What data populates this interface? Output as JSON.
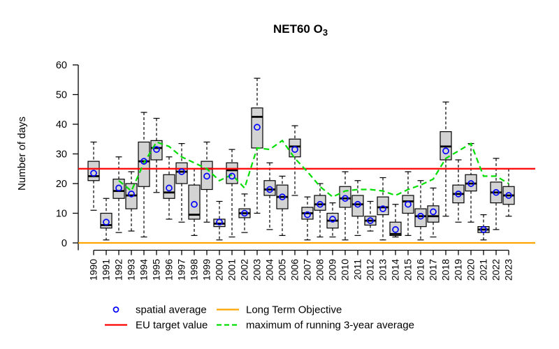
{
  "chart_data": {
    "type": "boxplot",
    "title_main": "NET60 O",
    "title_subscript": "3",
    "ylabel": "Number of days",
    "ylim": [
      0,
      60
    ],
    "yticks": [
      0,
      10,
      20,
      30,
      40,
      50,
      60
    ],
    "grid": false,
    "legend_position": "bottom",
    "years": [
      1990,
      1991,
      1992,
      1993,
      1994,
      1995,
      1996,
      1997,
      1998,
      1999,
      2000,
      2001,
      2002,
      2003,
      2004,
      2005,
      2006,
      2007,
      2008,
      2009,
      2010,
      2011,
      2012,
      2013,
      2014,
      2015,
      2016,
      2017,
      2018,
      2019,
      2020,
      2021,
      2022,
      2023
    ],
    "whisker_low": [
      11,
      1,
      3.5,
      4,
      2,
      17,
      8,
      7,
      2.5,
      7,
      1,
      2,
      3.5,
      10,
      4.5,
      2.5,
      16,
      1,
      2,
      2,
      1,
      2.5,
      4,
      1,
      2,
      2.5,
      1,
      2,
      9,
      7,
      7,
      1,
      4.5,
      9
    ],
    "q1": [
      21,
      5,
      15,
      11.5,
      19,
      28,
      15,
      20,
      8,
      18,
      5.5,
      20,
      8.5,
      32,
      16,
      11.5,
      29,
      8,
      11,
      5,
      12,
      9,
      6,
      9.5,
      2.5,
      10,
      5.5,
      7,
      28,
      13.5,
      17.5,
      3.5,
      13.5,
      13
    ],
    "median": [
      22.5,
      6,
      17.5,
      16,
      27.5,
      32,
      17,
      24,
      9.5,
      25,
      6.5,
      24.5,
      10,
      42.5,
      18,
      15.5,
      32.5,
      10,
      13,
      7.5,
      15,
      13,
      7.5,
      12,
      3,
      14,
      9,
      9,
      32.5,
      16.5,
      20,
      4.5,
      17,
      16
    ],
    "q3": [
      27.5,
      10,
      21.5,
      20,
      34,
      34.5,
      23,
      27,
      19.5,
      27.5,
      8,
      27,
      11.5,
      45.5,
      21,
      19.5,
      35,
      12,
      16,
      10,
      19,
      16,
      9,
      15.5,
      7,
      16,
      11.5,
      12.5,
      37.5,
      19.5,
      23,
      5.5,
      20.5,
      19
    ],
    "whisker_high": [
      34,
      15,
      29,
      24,
      44,
      42,
      29,
      33.5,
      25,
      34,
      14,
      31.5,
      16.5,
      55.5,
      27,
      22.5,
      39.5,
      15.5,
      20,
      13.5,
      24,
      21,
      14,
      22,
      13,
      24,
      21,
      18.5,
      47.5,
      28,
      33.5,
      9.5,
      28.5,
      25
    ],
    "spatial_average": [
      23.5,
      7,
      18.5,
      16.5,
      27.5,
      31.5,
      18.5,
      24,
      13,
      22.5,
      7,
      22.5,
      10,
      39,
      18,
      15.5,
      31.5,
      9.5,
      13,
      8,
      15,
      13,
      7.5,
      11.5,
      4.5,
      13,
      9,
      10.5,
      31,
      16.5,
      20,
      4.5,
      17,
      16
    ],
    "running_3yr_max": [
      null,
      null,
      21,
      17.5,
      27,
      34,
      32.5,
      29,
      27,
      25,
      21,
      23,
      18.5,
      32,
      31.5,
      34.5,
      28.5,
      24,
      19,
      15.5,
      17.5,
      18,
      18,
      17.5,
      16,
      18,
      19.5,
      21.5,
      28.5,
      31,
      33.5,
      22.5,
      22.5,
      20
    ],
    "reference_lines": [
      {
        "name": "EU target value",
        "value": 25,
        "color": "#FF0000"
      },
      {
        "name": "Long Term Objective",
        "value": 0,
        "color": "#FFA500"
      }
    ],
    "colors": {
      "box_fill": "#D3D3D3",
      "box_border": "#000000",
      "median": "#000000",
      "spatial_average": "#0000FF",
      "eu_target": "#FF0000",
      "long_term_objective": "#FFA500",
      "running_3yr_max": "#00DD00"
    },
    "legend": [
      {
        "label": "spatial average",
        "marker": "circle",
        "color": "#0000FF"
      },
      {
        "label": "EU target value",
        "marker": "solid-line",
        "color": "#FF0000"
      },
      {
        "label": "Long Term Objective",
        "marker": "solid-line",
        "color": "#FFA500"
      },
      {
        "label": "maximum of running 3-year average",
        "marker": "dashed-line",
        "color": "#00DD00"
      }
    ]
  }
}
